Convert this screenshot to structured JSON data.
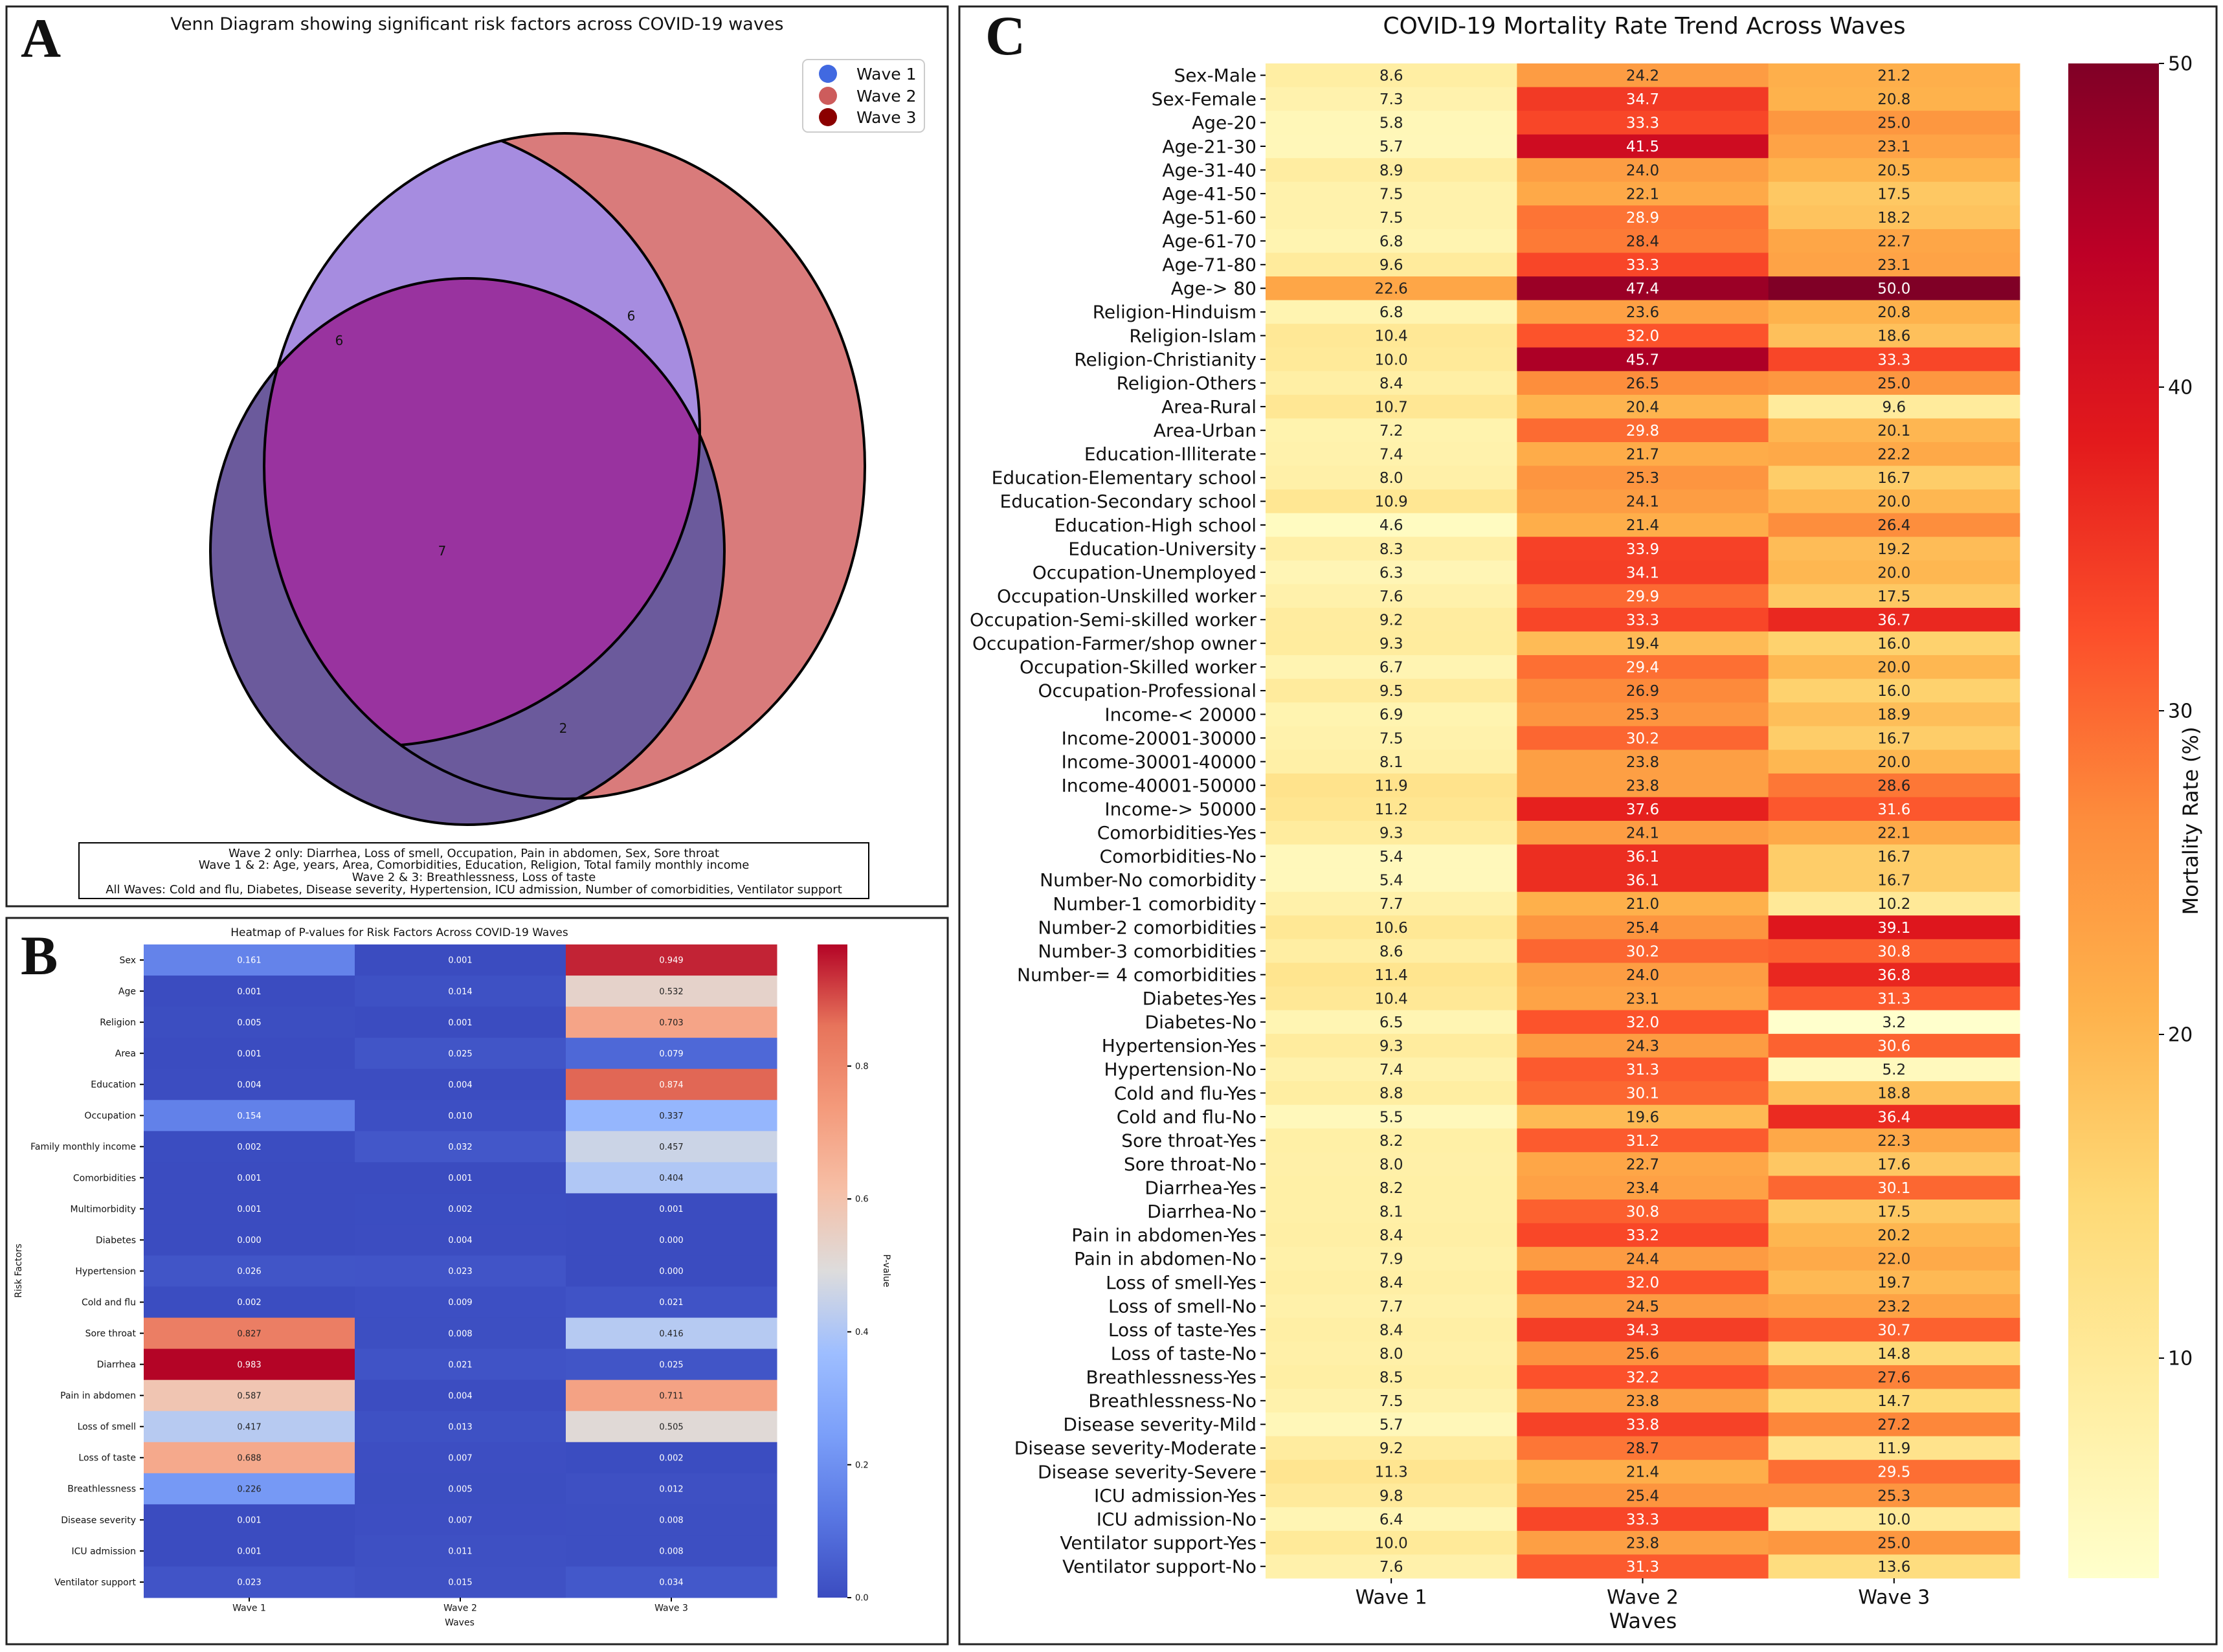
{
  "panel_labels": {
    "a": "A",
    "b": "B",
    "c": "C"
  },
  "colors": {
    "wave1": "#4169e1",
    "wave2": "#cd5c5c",
    "wave3": "#8b0000",
    "venn_w1_only": "#a68ce0",
    "venn_w2_only": "#d97b7b",
    "venn_w3_only": "#6b5a9c",
    "venn_all": "#99339f"
  },
  "chart_data": [
    {
      "type": "venn",
      "title": "Venn Diagram showing significant risk factors across COVID-19 waves",
      "legend": [
        "Wave 1",
        "Wave 2",
        "Wave 3"
      ],
      "legend_position": "top-right",
      "region_counts": {
        "wave1_and_wave2": "6",
        "wave2_only": "6",
        "all_waves": "7",
        "wave2_and_wave3": "2"
      },
      "notes": [
        "Wave 2 only: Diarrhea, Loss of smell, Occupation, Pain in abdomen, Sex, Sore throat",
        "Wave 1 & 2: Age, years, Area, Comorbidities, Education, Religion, Total family monthly income",
        "Wave 2 & 3: Breathlessness, Loss of taste",
        "All Waves: Cold and flu, Diabetes, Disease severity, Hypertension, ICU admission, Number of comorbidities, Ventilator support"
      ]
    },
    {
      "type": "heatmap",
      "title": "Heatmap of P-values for Risk Factors Across COVID-19 Waves",
      "xlabel": "Waves",
      "ylabel": "Risk Factors",
      "colorbar_label": "P-value",
      "colormap": "coolwarm",
      "vmin": 0.0,
      "vmax": 0.983,
      "colorbar_ticks": [
        "0.0",
        "0.2",
        "0.4",
        "0.6",
        "0.8"
      ],
      "x": [
        "Wave 1",
        "Wave 2",
        "Wave 3"
      ],
      "y": [
        "Sex",
        "Age",
        "Religion",
        "Area",
        "Education",
        "Occupation",
        "Family monthly income",
        "Comorbidities",
        "Multimorbidity",
        "Diabetes",
        "Hypertension",
        "Cold and flu",
        "Sore throat",
        "Diarrhea",
        "Pain in abdomen",
        "Loss of smell",
        "Loss of taste",
        "Breathlessness",
        "Disease severity",
        "ICU admission",
        "Ventilator support"
      ],
      "values": [
        [
          "0.161",
          "0.001",
          "0.949"
        ],
        [
          "0.001",
          "0.014",
          "0.532"
        ],
        [
          "0.005",
          "0.001",
          "0.703"
        ],
        [
          "0.001",
          "0.025",
          "0.079"
        ],
        [
          "0.004",
          "0.004",
          "0.874"
        ],
        [
          "0.154",
          "0.010",
          "0.337"
        ],
        [
          "0.002",
          "0.032",
          "0.457"
        ],
        [
          "0.001",
          "0.001",
          "0.404"
        ],
        [
          "0.001",
          "0.002",
          "0.001"
        ],
        [
          "0.000",
          "0.004",
          "0.000"
        ],
        [
          "0.026",
          "0.023",
          "0.000"
        ],
        [
          "0.002",
          "0.009",
          "0.021"
        ],
        [
          "0.827",
          "0.008",
          "0.416"
        ],
        [
          "0.983",
          "0.021",
          "0.025"
        ],
        [
          "0.587",
          "0.004",
          "0.711"
        ],
        [
          "0.417",
          "0.013",
          "0.505"
        ],
        [
          "0.688",
          "0.007",
          "0.002"
        ],
        [
          "0.226",
          "0.005",
          "0.012"
        ],
        [
          "0.001",
          "0.007",
          "0.008"
        ],
        [
          "0.001",
          "0.011",
          "0.008"
        ],
        [
          "0.023",
          "0.015",
          "0.034"
        ]
      ]
    },
    {
      "type": "heatmap",
      "title": "COVID-19 Mortality Rate Trend Across Waves",
      "xlabel": "Waves",
      "ylabel": "",
      "colorbar_label": "Mortality Rate (%)",
      "colormap": "YlOrRd",
      "vmin": 3.2,
      "vmax": 50.0,
      "colorbar_ticks": [
        "10",
        "20",
        "30",
        "40",
        "50"
      ],
      "x": [
        "Wave 1",
        "Wave 2",
        "Wave 3"
      ],
      "y": [
        "Sex-Male",
        "Sex-Female",
        "Age-20",
        "Age-21-30",
        "Age-31-40",
        "Age-41-50",
        "Age-51-60",
        "Age-61-70",
        "Age-71-80",
        "Age-> 80",
        "Religion-Hinduism",
        "Religion-Islam",
        "Religion-Christianity",
        "Religion-Others",
        "Area-Rural",
        "Area-Urban",
        "Education-Illiterate",
        "Education-Elementary school",
        "Education-Secondary school",
        "Education-High school",
        "Education-University",
        "Occupation-Unemployed",
        "Occupation-Unskilled worker",
        "Occupation-Semi-skilled worker",
        "Occupation-Farmer/shop owner",
        "Occupation-Skilled worker",
        "Occupation-Professional",
        "Income-< 20000",
        "Income-20001-30000",
        "Income-30001-40000",
        "Income-40001-50000",
        "Income-> 50000",
        "Comorbidities-Yes",
        "Comorbidities-No",
        "Number-No comorbidity",
        "Number-1 comorbidity",
        "Number-2 comorbidities",
        "Number-3 comorbidities",
        "Number-= 4 comorbidities",
        "Diabetes-Yes",
        "Diabetes-No",
        "Hypertension-Yes",
        "Hypertension-No",
        "Cold and flu-Yes",
        "Cold and flu-No",
        "Sore throat-Yes",
        "Sore throat-No",
        "Diarrhea-Yes",
        "Diarrhea-No",
        "Pain in abdomen-Yes",
        "Pain in abdomen-No",
        "Loss of smell-Yes",
        "Loss of smell-No",
        "Loss of taste-Yes",
        "Loss of taste-No",
        "Breathlessness-Yes",
        "Breathlessness-No",
        "Disease severity-Mild",
        "Disease severity-Moderate",
        "Disease severity-Severe",
        "ICU admission-Yes",
        "ICU admission-No",
        "Ventilator support-Yes",
        "Ventilator support-No"
      ],
      "values": [
        [
          "8.6",
          "24.2",
          "21.2"
        ],
        [
          "7.3",
          "34.7",
          "20.8"
        ],
        [
          "5.8",
          "33.3",
          "25.0"
        ],
        [
          "5.7",
          "41.5",
          "23.1"
        ],
        [
          "8.9",
          "24.0",
          "20.5"
        ],
        [
          "7.5",
          "22.1",
          "17.5"
        ],
        [
          "7.5",
          "28.9",
          "18.2"
        ],
        [
          "6.8",
          "28.4",
          "22.7"
        ],
        [
          "9.6",
          "33.3",
          "23.1"
        ],
        [
          "22.6",
          "47.4",
          "50.0"
        ],
        [
          "6.8",
          "23.6",
          "20.8"
        ],
        [
          "10.4",
          "32.0",
          "18.6"
        ],
        [
          "10.0",
          "45.7",
          "33.3"
        ],
        [
          "8.4",
          "26.5",
          "25.0"
        ],
        [
          "10.7",
          "20.4",
          "9.6"
        ],
        [
          "7.2",
          "29.8",
          "20.1"
        ],
        [
          "7.4",
          "21.7",
          "22.2"
        ],
        [
          "8.0",
          "25.3",
          "16.7"
        ],
        [
          "10.9",
          "24.1",
          "20.0"
        ],
        [
          "4.6",
          "21.4",
          "26.4"
        ],
        [
          "8.3",
          "33.9",
          "19.2"
        ],
        [
          "6.3",
          "34.1",
          "20.0"
        ],
        [
          "7.6",
          "29.9",
          "17.5"
        ],
        [
          "9.2",
          "33.3",
          "36.7"
        ],
        [
          "9.3",
          "19.4",
          "16.0"
        ],
        [
          "6.7",
          "29.4",
          "20.0"
        ],
        [
          "9.5",
          "26.9",
          "16.0"
        ],
        [
          "6.9",
          "25.3",
          "18.9"
        ],
        [
          "7.5",
          "30.2",
          "16.7"
        ],
        [
          "8.1",
          "23.8",
          "20.0"
        ],
        [
          "11.9",
          "23.8",
          "28.6"
        ],
        [
          "11.2",
          "37.6",
          "31.6"
        ],
        [
          "9.3",
          "24.1",
          "22.1"
        ],
        [
          "5.4",
          "36.1",
          "16.7"
        ],
        [
          "5.4",
          "36.1",
          "16.7"
        ],
        [
          "7.7",
          "21.0",
          "10.2"
        ],
        [
          "10.6",
          "25.4",
          "39.1"
        ],
        [
          "8.6",
          "30.2",
          "30.8"
        ],
        [
          "11.4",
          "24.0",
          "36.8"
        ],
        [
          "10.4",
          "23.1",
          "31.3"
        ],
        [
          "6.5",
          "32.0",
          "3.2"
        ],
        [
          "9.3",
          "24.3",
          "30.6"
        ],
        [
          "7.4",
          "31.3",
          "5.2"
        ],
        [
          "8.8",
          "30.1",
          "18.8"
        ],
        [
          "5.5",
          "19.6",
          "36.4"
        ],
        [
          "8.2",
          "31.2",
          "22.3"
        ],
        [
          "8.0",
          "22.7",
          "17.6"
        ],
        [
          "8.2",
          "23.4",
          "30.1"
        ],
        [
          "8.1",
          "30.8",
          "17.5"
        ],
        [
          "8.4",
          "33.2",
          "20.2"
        ],
        [
          "7.9",
          "24.4",
          "22.0"
        ],
        [
          "8.4",
          "32.0",
          "19.7"
        ],
        [
          "7.7",
          "24.5",
          "23.2"
        ],
        [
          "8.4",
          "34.3",
          "30.7"
        ],
        [
          "8.0",
          "25.6",
          "14.8"
        ],
        [
          "8.5",
          "32.2",
          "27.6"
        ],
        [
          "7.5",
          "23.8",
          "14.7"
        ],
        [
          "5.7",
          "33.8",
          "27.2"
        ],
        [
          "9.2",
          "28.7",
          "11.9"
        ],
        [
          "11.3",
          "21.4",
          "29.5"
        ],
        [
          "9.8",
          "25.4",
          "25.3"
        ],
        [
          "6.4",
          "33.3",
          "10.0"
        ],
        [
          "10.0",
          "23.8",
          "25.0"
        ],
        [
          "7.6",
          "31.3",
          "13.6"
        ]
      ]
    }
  ]
}
